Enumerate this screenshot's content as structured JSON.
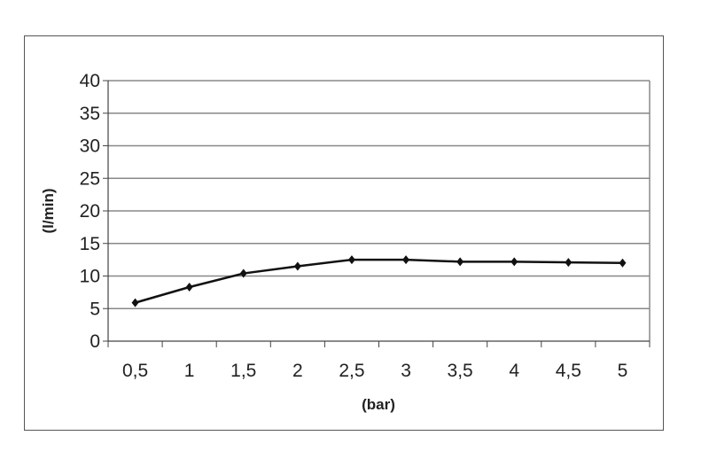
{
  "chart_data": {
    "type": "line",
    "title": "",
    "xlabel": "(bar)",
    "ylabel": "(l/min)",
    "categories": [
      "0,5",
      "1",
      "1,5",
      "2",
      "2,5",
      "3",
      "3,5",
      "4",
      "4,5",
      "5"
    ],
    "series": [
      {
        "values": [
          5.9,
          8.3,
          10.4,
          11.5,
          12.5,
          12.5,
          12.2,
          12.2,
          12.1,
          12.0
        ]
      }
    ],
    "ylim": [
      0,
      40
    ],
    "yticks": [
      0,
      5,
      10,
      15,
      20,
      25,
      30,
      35,
      40
    ],
    "grid": true,
    "legend": "none",
    "colors": {
      "line": "#111111",
      "grid": "#888888",
      "frame": "#555555"
    }
  }
}
